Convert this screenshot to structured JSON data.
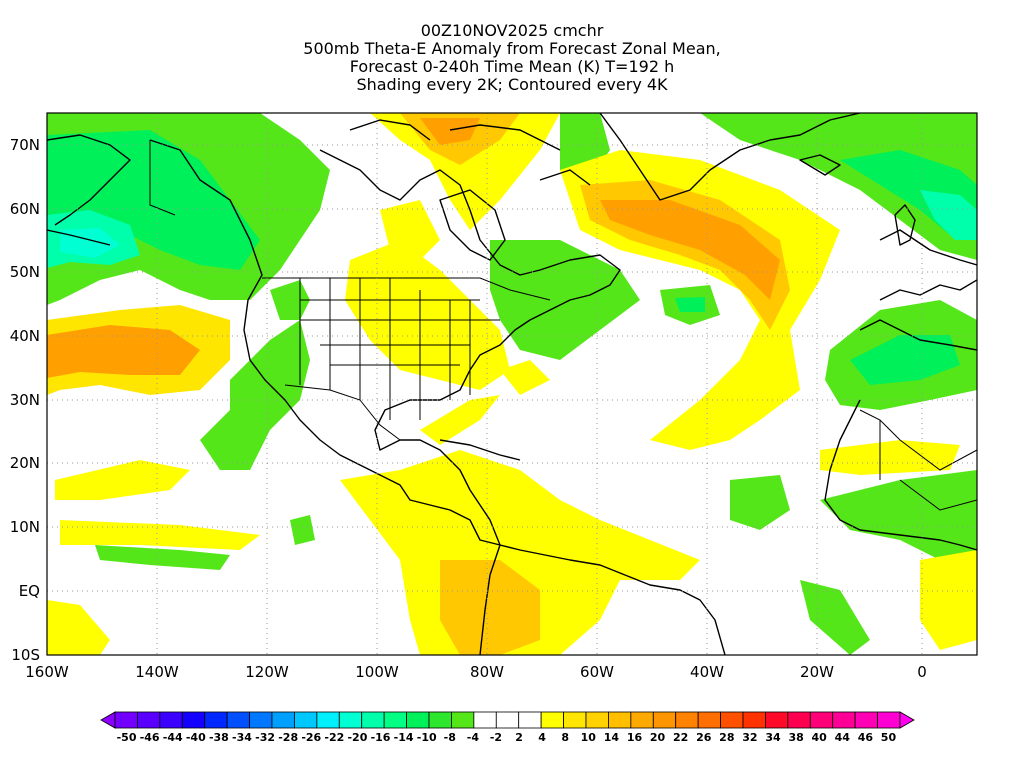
{
  "title": {
    "line1": "00Z10NOV2025 cmchr",
    "line2": "500mb Theta-E Anomaly from Forecast Zonal Mean,",
    "line3": "Forecast 0-240h Time Mean (K) T=192 h",
    "line4": "Shading every 2K; Contoured every 4K"
  },
  "axes": {
    "lat_labels": [
      "70N",
      "60N",
      "50N",
      "40N",
      "30N",
      "20N",
      "10N",
      "EQ",
      "10S"
    ],
    "lon_labels": [
      "160W",
      "140W",
      "120W",
      "100W",
      "80W",
      "60W",
      "40W",
      "20W",
      "0"
    ]
  },
  "colorbar": {
    "labels": [
      "-50",
      "-46",
      "-44",
      "-40",
      "-38",
      "-34",
      "-32",
      "-28",
      "-26",
      "-22",
      "-20",
      "-16",
      "-14",
      "-10",
      "-8",
      "-4",
      "-2",
      "2",
      "4",
      "8",
      "10",
      "14",
      "16",
      "20",
      "22",
      "26",
      "28",
      "32",
      "34",
      "38",
      "40",
      "44",
      "46",
      "50"
    ],
    "colors": [
      "#8c00ff",
      "#7300ff",
      "#5a00ff",
      "#3c00ff",
      "#1400ff",
      "#0028ff",
      "#0050ff",
      "#0078ff",
      "#00a0ff",
      "#00c8ff",
      "#00f0ff",
      "#00ffd2",
      "#00ffaa",
      "#00ff82",
      "#00f05a",
      "#2de62d",
      "#55e619",
      "#ffffff",
      "#ffffff",
      "#ffffff",
      "#ffff00",
      "#ffe600",
      "#ffd200",
      "#ffbe00",
      "#ffaa00",
      "#ff9600",
      "#ff8200",
      "#ff6e00",
      "#ff5000",
      "#ff3200",
      "#ff0a28",
      "#ff0050",
      "#ff0078",
      "#ff0096",
      "#ff00b4",
      "#ff00d2",
      "#ff00f0"
    ]
  },
  "map_colors": {
    "ocean_bg": "#ffffff",
    "light_yellow": "#ffff00",
    "yellow": "#ffe600",
    "orange_light": "#ffc800",
    "orange": "#ffa000",
    "green": "#55e619",
    "green_bright": "#00f05a",
    "teal": "#00ffaa",
    "cyan": "#00f0ff",
    "coast": "#000000"
  }
}
